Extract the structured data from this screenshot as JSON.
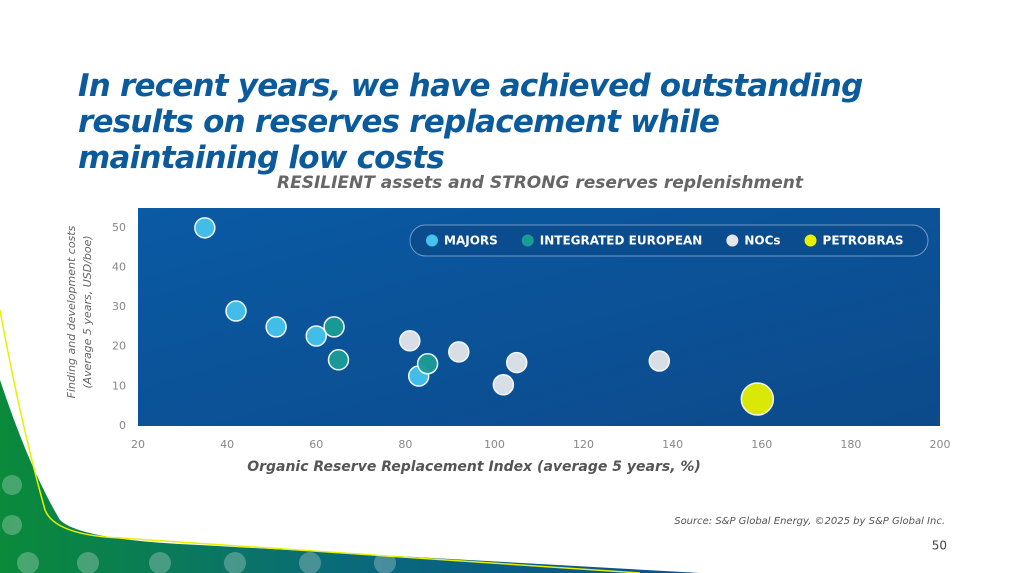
{
  "title": "In recent years, we have achieved outstanding results on reserves replacement while maintaining low costs",
  "chart_data": {
    "type": "scatter",
    "title": "RESILIENT assets and STRONG reserves replenishment",
    "xlabel": "Organic Reserve Replacement Index (average 5 years, %)",
    "ylabel_lines": [
      "Finding and development costs",
      "(Average 5 years, USD/boe)"
    ],
    "xlim": [
      20,
      200
    ],
    "xticks": [
      20,
      40,
      60,
      80,
      100,
      120,
      140,
      160,
      180,
      200
    ],
    "ylim": [
      0,
      55
    ],
    "yticks": [
      0,
      10,
      20,
      30,
      40,
      50
    ],
    "grid": false,
    "legend": "top-right",
    "series": [
      {
        "name": "MAJORS",
        "color": "#44c3ec",
        "x": [
          35,
          42,
          51,
          60,
          83
        ],
        "values": [
          50,
          29,
          25,
          22.7,
          12.6
        ]
      },
      {
        "name": "INTEGRATED EUROPEAN",
        "color": "#1a9c96",
        "x": [
          64,
          65,
          85
        ],
        "values": [
          25,
          16.7,
          15.7
        ]
      },
      {
        "name": "NOCs",
        "color": "#e3e6ea",
        "x": [
          81,
          92,
          102,
          105,
          137
        ],
        "values": [
          21.5,
          18.7,
          10.4,
          16,
          16.4
        ]
      },
      {
        "name": "PETROBRAS",
        "color": "#e6f000",
        "x": [
          159
        ],
        "values": [
          6.8
        ]
      }
    ]
  },
  "source": "Source: S&P Global Energy, ©2025 by S&P Global Inc.",
  "page_number": 50
}
